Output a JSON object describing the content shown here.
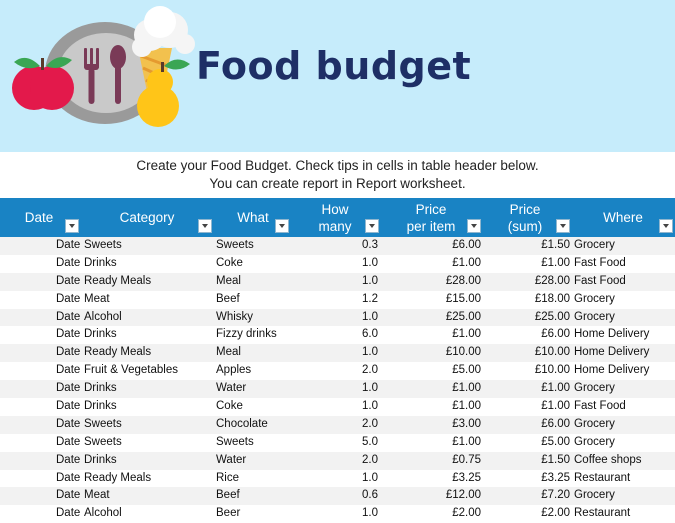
{
  "title": "Food budget",
  "subtitle_line1": "Create your Food Budget. Check tips in cells in table header below.",
  "subtitle_line2": "You can create report in Report worksheet.",
  "colors": {
    "banner_bg": "#c6ecfb",
    "title": "#1e2f66",
    "header_bg": "#1983c4",
    "row_alt": "#f2f2f2"
  },
  "icons": [
    "apple-icon",
    "plate-icon",
    "fork-icon",
    "spoon-icon",
    "ice-cream-icon",
    "pear-icon",
    "filter-dropdown-icon"
  ],
  "columns": [
    {
      "key": "date",
      "label": "Date"
    },
    {
      "key": "category",
      "label": "Category"
    },
    {
      "key": "what",
      "label": "What"
    },
    {
      "key": "how_many",
      "label": "How many"
    },
    {
      "key": "price_per_item",
      "label": "Price per item"
    },
    {
      "key": "price_sum",
      "label": "Price (sum)"
    },
    {
      "key": "where",
      "label": "Where"
    }
  ],
  "rows": [
    {
      "date": "Date",
      "category": "Sweets",
      "what": "Sweets",
      "how_many": "0.3",
      "price_per_item": "£6.00",
      "price_sum": "£1.50",
      "where": "Grocery"
    },
    {
      "date": "Date",
      "category": "Drinks",
      "what": "Coke",
      "how_many": "1.0",
      "price_per_item": "£1.00",
      "price_sum": "£1.00",
      "where": "Fast Food"
    },
    {
      "date": "Date",
      "category": "Ready Meals",
      "what": "Meal",
      "how_many": "1.0",
      "price_per_item": "£28.00",
      "price_sum": "£28.00",
      "where": "Fast Food"
    },
    {
      "date": "Date",
      "category": "Meat",
      "what": "Beef",
      "how_many": "1.2",
      "price_per_item": "£15.00",
      "price_sum": "£18.00",
      "where": "Grocery"
    },
    {
      "date": "Date",
      "category": "Alcohol",
      "what": "Whisky",
      "how_many": "1.0",
      "price_per_item": "£25.00",
      "price_sum": "£25.00",
      "where": "Grocery"
    },
    {
      "date": "Date",
      "category": "Drinks",
      "what": "Fizzy drinks",
      "how_many": "6.0",
      "price_per_item": "£1.00",
      "price_sum": "£6.00",
      "where": "Home Delivery"
    },
    {
      "date": "Date",
      "category": "Ready Meals",
      "what": "Meal",
      "how_many": "1.0",
      "price_per_item": "£10.00",
      "price_sum": "£10.00",
      "where": "Home Delivery"
    },
    {
      "date": "Date",
      "category": "Fruit & Vegetables",
      "what": "Apples",
      "how_many": "2.0",
      "price_per_item": "£5.00",
      "price_sum": "£10.00",
      "where": "Home Delivery"
    },
    {
      "date": "Date",
      "category": "Drinks",
      "what": "Water",
      "how_many": "1.0",
      "price_per_item": "£1.00",
      "price_sum": "£1.00",
      "where": "Grocery"
    },
    {
      "date": "Date",
      "category": "Drinks",
      "what": "Coke",
      "how_many": "1.0",
      "price_per_item": "£1.00",
      "price_sum": "£1.00",
      "where": "Fast Food"
    },
    {
      "date": "Date",
      "category": "Sweets",
      "what": "Chocolate",
      "how_many": "2.0",
      "price_per_item": "£3.00",
      "price_sum": "£6.00",
      "where": "Grocery"
    },
    {
      "date": "Date",
      "category": "Sweets",
      "what": "Sweets",
      "how_many": "5.0",
      "price_per_item": "£1.00",
      "price_sum": "£5.00",
      "where": "Grocery"
    },
    {
      "date": "Date",
      "category": "Drinks",
      "what": "Water",
      "how_many": "2.0",
      "price_per_item": "£0.75",
      "price_sum": "£1.50",
      "where": "Coffee shops"
    },
    {
      "date": "Date",
      "category": "Ready Meals",
      "what": "Rice",
      "how_many": "1.0",
      "price_per_item": "£3.25",
      "price_sum": "£3.25",
      "where": "Restaurant"
    },
    {
      "date": "Date",
      "category": "Meat",
      "what": "Beef",
      "how_many": "0.6",
      "price_per_item": "£12.00",
      "price_sum": "£7.20",
      "where": "Grocery"
    },
    {
      "date": "Date",
      "category": "Alcohol",
      "what": "Beer",
      "how_many": "1.0",
      "price_per_item": "£2.00",
      "price_sum": "£2.00",
      "where": "Restaurant"
    }
  ]
}
